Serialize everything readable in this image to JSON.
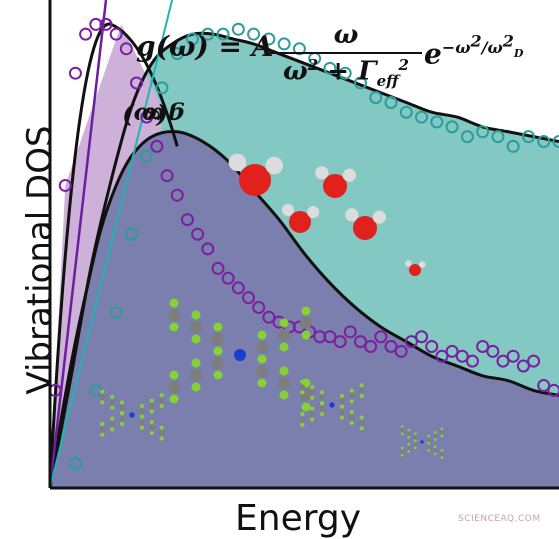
{
  "chart_data": {
    "type": "area",
    "title": "",
    "xlabel": "Energy",
    "ylabel": "Vibrational DOS",
    "equation": {
      "lhs": "g(ω) = A",
      "numerator": "ω",
      "denominator": "ω",
      "denominator_sup": "2",
      "denominator_rest": " + Γ",
      "gamma_sub": "eff",
      "gamma_sup": "2",
      "exp_base": "e",
      "exp_power": "−ω",
      "exp_power_sup": "2",
      "exp_power_div": "/ω",
      "exp_power_div_sup": "2",
      "exp_power_div_sub": "D"
    },
    "low_freq_label": {
      "g": "g(ω)",
      "prop": " ∝ ",
      "w": "ω"
    },
    "xlim": [
      0,
      1
    ],
    "ylim": [
      0,
      1
    ],
    "series": [
      {
        "kind": "fill",
        "color": "#7b7fad",
        "x": [
          0,
          0.025,
          0.05,
          0.075,
          0.1,
          0.13,
          0.16,
          0.2,
          0.25,
          0.3,
          0.35,
          0.4,
          0.45,
          0.5,
          0.55,
          0.6,
          0.65,
          0.7,
          0.75,
          0.8,
          0.85,
          0.9,
          0.95,
          1.0
        ],
        "y": [
          0,
          0.16,
          0.3,
          0.42,
          0.53,
          0.62,
          0.68,
          0.72,
          0.73,
          0.71,
          0.67,
          0.61,
          0.55,
          0.48,
          0.42,
          0.37,
          0.33,
          0.3,
          0.27,
          0.25,
          0.23,
          0.22,
          0.2,
          0.19
        ]
      },
      {
        "kind": "fill",
        "color": "#83c8c3",
        "x": [
          0,
          0.04,
          0.08,
          0.12,
          0.16,
          0.2,
          0.24,
          0.28,
          0.32,
          0.36,
          0.4,
          0.45,
          0.5,
          0.55,
          0.6,
          0.65,
          0.7,
          0.75,
          0.8,
          0.85,
          0.9,
          0.95,
          1.0
        ],
        "y": [
          0,
          0.22,
          0.45,
          0.63,
          0.78,
          0.87,
          0.91,
          0.93,
          0.93,
          0.92,
          0.91,
          0.89,
          0.87,
          0.85,
          0.83,
          0.81,
          0.79,
          0.77,
          0.76,
          0.74,
          0.73,
          0.72,
          0.71
        ]
      },
      {
        "kind": "scatter",
        "color": "#7a1fa0",
        "x": [
          0.01,
          0.03,
          0.05,
          0.07,
          0.09,
          0.11,
          0.13,
          0.15,
          0.17,
          0.19,
          0.21,
          0.23,
          0.25,
          0.27,
          0.29,
          0.31,
          0.33,
          0.35,
          0.37,
          0.39,
          0.41,
          0.43,
          0.45,
          0.47,
          0.49,
          0.51,
          0.53,
          0.55,
          0.57,
          0.59,
          0.61,
          0.63,
          0.65,
          0.67,
          0.69,
          0.71,
          0.73,
          0.75,
          0.77,
          0.79,
          0.81,
          0.83,
          0.85,
          0.87,
          0.89,
          0.91,
          0.93,
          0.95,
          0.97,
          0.99
        ],
        "y": [
          0.2,
          0.62,
          0.85,
          0.93,
          0.95,
          0.95,
          0.93,
          0.9,
          0.83,
          0.76,
          0.7,
          0.64,
          0.6,
          0.55,
          0.52,
          0.49,
          0.45,
          0.43,
          0.41,
          0.39,
          0.37,
          0.35,
          0.34,
          0.33,
          0.33,
          0.32,
          0.31,
          0.31,
          0.3,
          0.32,
          0.3,
          0.29,
          0.31,
          0.29,
          0.28,
          0.3,
          0.31,
          0.29,
          0.27,
          0.28,
          0.27,
          0.26,
          0.29,
          0.28,
          0.26,
          0.27,
          0.25,
          0.26,
          0.21,
          0.2
        ]
      },
      {
        "kind": "scatter",
        "color": "#2b9e9a",
        "x": [
          0.05,
          0.09,
          0.13,
          0.16,
          0.19,
          0.22,
          0.25,
          0.28,
          0.31,
          0.34,
          0.37,
          0.4,
          0.43,
          0.46,
          0.49,
          0.52,
          0.55,
          0.58,
          0.61,
          0.64,
          0.67,
          0.7,
          0.73,
          0.76,
          0.79,
          0.82,
          0.85,
          0.88,
          0.91,
          0.94,
          0.97,
          1.0
        ],
        "y": [
          0.05,
          0.2,
          0.36,
          0.52,
          0.68,
          0.82,
          0.89,
          0.92,
          0.93,
          0.93,
          0.94,
          0.93,
          0.92,
          0.91,
          0.9,
          0.88,
          0.86,
          0.85,
          0.83,
          0.8,
          0.79,
          0.77,
          0.76,
          0.75,
          0.74,
          0.72,
          0.73,
          0.72,
          0.7,
          0.72,
          0.71,
          0.71
        ]
      }
    ],
    "molecules_color": {
      "water_o": "#e0211d",
      "water_h": "#dcdcdc",
      "carbon": "#7d7d7d",
      "fluorine": "#86d233",
      "nitrogen": "#1a3fd0"
    },
    "grid": false,
    "legend": "none"
  },
  "labels": {
    "y_axis": "Vibrational DOS",
    "x_axis": "Energy",
    "watermark": "SCIENCEAQ.COM"
  }
}
